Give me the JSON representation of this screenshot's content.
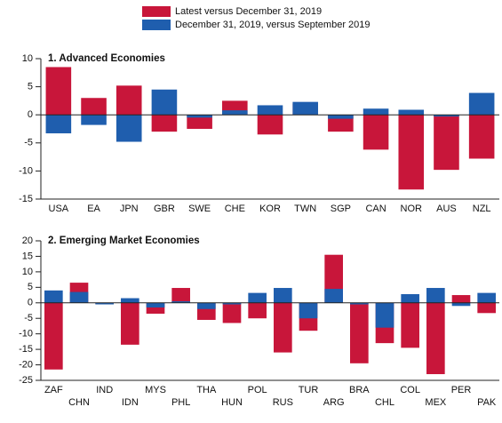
{
  "chart_data": [
    {
      "type": "bar",
      "title": "1. Advanced Economies",
      "categories": [
        "USA",
        "EA",
        "JPN",
        "GBR",
        "SWE",
        "CHE",
        "KOR",
        "TWN",
        "SGP",
        "CAN",
        "NOR",
        "AUS",
        "NZL"
      ],
      "series": [
        {
          "name": "Latest versus December 31, 2019",
          "color": "#c8163a",
          "values": [
            8.5,
            3,
            5.2,
            -3,
            -2.5,
            2.5,
            -3.5,
            2,
            -3,
            -6.2,
            -13.3,
            -9.8,
            -7.8
          ]
        },
        {
          "name": "December 31, 2019, versus September 2019",
          "color": "#1f5eae",
          "values": [
            -3.3,
            -1.8,
            -4.8,
            4.5,
            -0.5,
            0.8,
            1.7,
            2.3,
            -0.7,
            1.1,
            0.9,
            -0.3,
            3.9
          ]
        }
      ],
      "ylim": [
        -15,
        10
      ],
      "yticks": [
        -15,
        -10,
        -5,
        0,
        5,
        10
      ],
      "stagger_labels": false
    },
    {
      "type": "bar",
      "title": "2. Emerging Market Economies",
      "categories": [
        "ZAF",
        "CHN",
        "IND",
        "IDN",
        "MYS",
        "PHL",
        "THA",
        "HUN",
        "POL",
        "RUS",
        "TUR",
        "ARG",
        "BRA",
        "CHL",
        "COL",
        "MEX",
        "PER",
        "PAK"
      ],
      "series": [
        {
          "color": "#c8163a",
          "values": [
            -21.5,
            6.5,
            -0.3,
            -13.5,
            -3.5,
            4.8,
            -5.5,
            -6.5,
            -5,
            -16,
            -9,
            15.5,
            -19.5,
            -13,
            -14.5,
            -23,
            2.5,
            -3.3
          ]
        },
        {
          "color": "#1f5eae",
          "values": [
            4,
            3.5,
            -0.5,
            1.5,
            -1.5,
            0.5,
            -2,
            -0.5,
            3.2,
            4.8,
            -5,
            4.5,
            -0.5,
            -8,
            2.8,
            4.8,
            -1,
            3.2
          ]
        }
      ],
      "ylim": [
        -25,
        20
      ],
      "yticks": [
        -25,
        -20,
        -15,
        -10,
        -5,
        0,
        5,
        10,
        15,
        20
      ],
      "stagger_labels": true
    }
  ]
}
